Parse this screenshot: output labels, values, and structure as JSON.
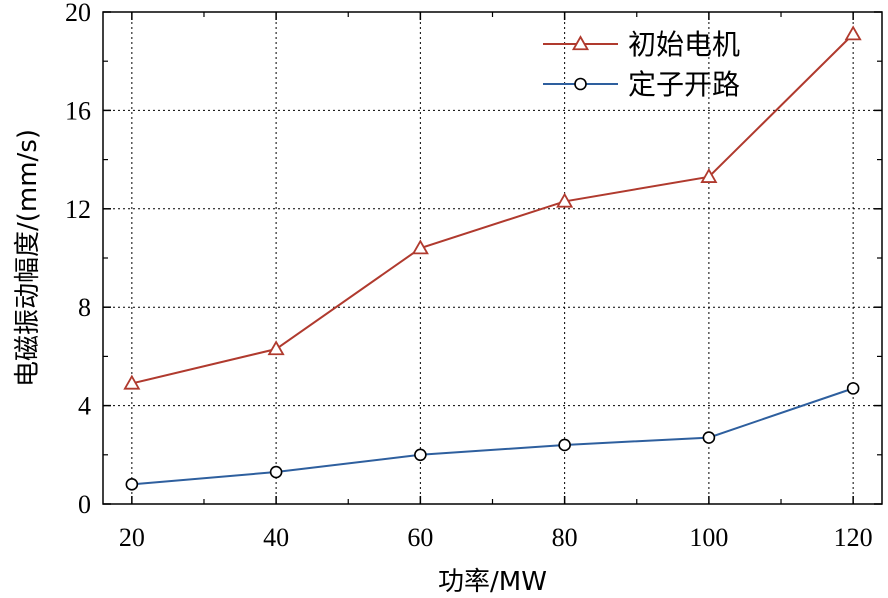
{
  "chart_data": {
    "type": "line",
    "x": [
      20,
      40,
      60,
      80,
      100,
      120
    ],
    "xticks": [
      20,
      40,
      60,
      80,
      100,
      120
    ],
    "yticks": [
      0,
      4,
      8,
      12,
      16,
      20
    ],
    "xlim": [
      16,
      124
    ],
    "ylim": [
      0,
      20
    ],
    "xlabel": "功率/MW",
    "ylabel": "电磁振动幅度/(mm/s)",
    "grid": true,
    "legend_position": "top-right",
    "series": [
      {
        "name": "初始电机",
        "marker": "triangle",
        "color": "#b03a2e",
        "values": [
          4.9,
          6.3,
          10.4,
          12.3,
          13.3,
          19.1
        ]
      },
      {
        "name": "定子开路",
        "marker": "circle",
        "color": "#2e5f9e",
        "values": [
          0.8,
          1.3,
          2.0,
          2.4,
          2.7,
          4.7
        ]
      }
    ]
  }
}
